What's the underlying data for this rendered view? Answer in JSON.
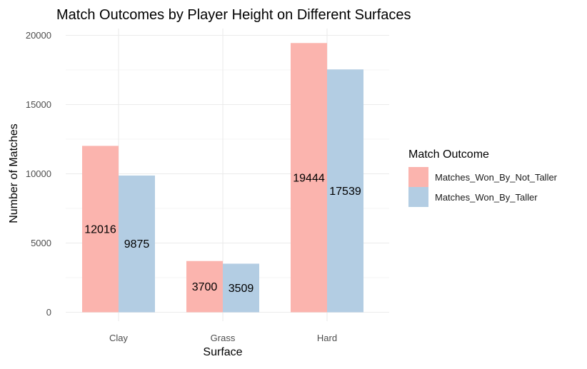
{
  "chart_data": {
    "type": "bar",
    "title": "Match Outcomes by Player Height on Different Surfaces",
    "xlabel": "Surface",
    "ylabel": "Number of Matches",
    "categories": [
      "Clay",
      "Grass",
      "Hard"
    ],
    "series": [
      {
        "name": "Matches_Won_By_Not_Taller",
        "values": [
          12016,
          3700,
          19444
        ],
        "color": "#FBB4AE"
      },
      {
        "name": "Matches_Won_By_Taller",
        "values": [
          9875,
          3509,
          17539
        ],
        "color": "#B3CDE3"
      }
    ],
    "ylim": [
      0,
      20000
    ],
    "yticks": [
      0,
      5000,
      10000,
      15000,
      20000
    ],
    "ytick_labels": [
      "0",
      "5000",
      "10000",
      "15000",
      "20000"
    ],
    "data_labels": {
      "Matches_Won_By_Not_Taller": [
        "12016",
        "3700",
        "19444"
      ],
      "Matches_Won_By_Taller": [
        "9875",
        "3509",
        "17539"
      ]
    },
    "legend_title": "Match Outcome",
    "legend_position": "right",
    "grid": true,
    "grid_color": "#EBEBEB"
  }
}
